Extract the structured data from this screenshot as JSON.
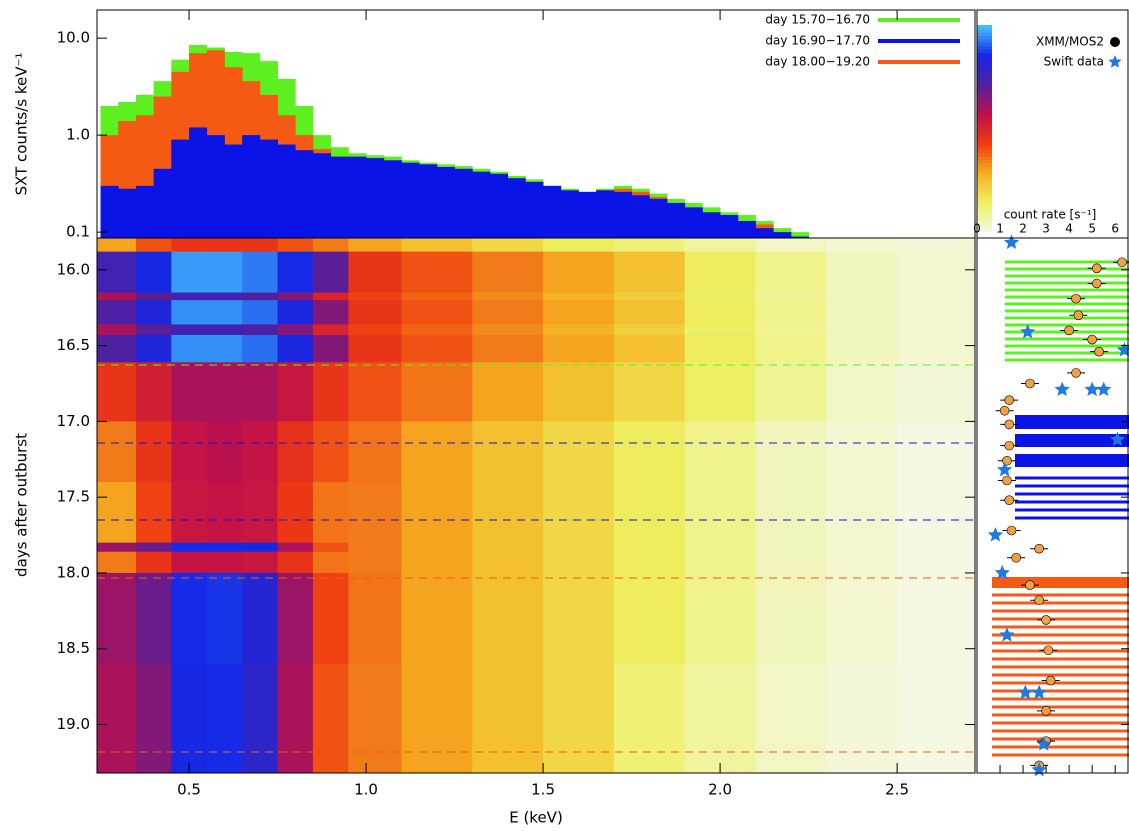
{
  "chart_data": [
    {
      "type": "histogram",
      "ylabel": "SXT counts/s keV⁻¹",
      "log_y": true,
      "xlim": [
        0.24,
        2.72
      ],
      "ylim": [
        0.087,
        19.5
      ],
      "yticks": [
        {
          "value": 10,
          "label": "10.0"
        },
        {
          "value": 1,
          "label": "1.0"
        },
        0.1
      ],
      "bins": [
        0.25,
        0.3,
        0.35,
        0.4,
        0.45,
        0.5,
        0.55,
        0.6,
        0.65,
        0.7,
        0.75,
        0.8,
        0.85,
        0.9,
        0.95,
        1.0,
        1.05,
        1.1,
        1.15,
        1.2,
        1.25,
        1.3,
        1.35,
        1.4,
        1.45,
        1.5,
        1.55,
        1.6,
        1.65,
        1.7,
        1.75,
        1.8,
        1.85,
        1.9,
        1.95,
        2.0,
        2.05,
        2.1,
        2.15,
        2.2,
        2.25
      ],
      "series": [
        {
          "name": "day 15.70−16.70",
          "color": "#5df020",
          "values": [
            2.0,
            2.2,
            2.6,
            3.6,
            6.0,
            8.5,
            8.0,
            7.2,
            7.0,
            5.8,
            3.8,
            2.0,
            1.0,
            0.75,
            0.65,
            0.62,
            0.6,
            0.55,
            0.52,
            0.5,
            0.48,
            0.45,
            0.42,
            0.38,
            0.35,
            0.3,
            0.28,
            0.26,
            0.28,
            0.3,
            0.28,
            0.25,
            0.22,
            0.2,
            0.18,
            0.16,
            0.15,
            0.13,
            0.11,
            0.1
          ]
        },
        {
          "name": "day 16.90−17.70",
          "color": "#0a14e6",
          "values": [
            0.3,
            0.28,
            0.3,
            0.45,
            0.9,
            1.2,
            1.0,
            0.8,
            1.0,
            0.9,
            0.8,
            0.7,
            0.65,
            0.6,
            0.6,
            0.58,
            0.55,
            0.52,
            0.5,
            0.47,
            0.45,
            0.42,
            0.4,
            0.36,
            0.33,
            0.3,
            0.27,
            0.26,
            0.27,
            0.26,
            0.24,
            0.22,
            0.2,
            0.18,
            0.16,
            0.15,
            0.13,
            0.11,
            0.1,
            0.09
          ]
        },
        {
          "name": "day 18.00−19.20",
          "color": "#f55a14",
          "values": [
            1.0,
            1.4,
            1.6,
            2.5,
            4.5,
            7.0,
            7.5,
            5.0,
            3.6,
            2.6,
            1.6,
            1.0,
            0.72,
            0.6,
            0.58,
            0.57,
            0.55,
            0.5,
            0.48,
            0.45,
            0.43,
            0.4,
            0.38,
            0.35,
            0.32,
            0.28,
            0.26,
            0.25,
            0.27,
            0.28,
            0.26,
            0.23,
            0.2,
            0.18,
            0.16,
            0.15,
            0.13,
            0.12,
            0.1,
            0.09
          ]
        }
      ]
    },
    {
      "type": "heatmap",
      "xlabel": "E (keV)",
      "ylabel": "days after outburst",
      "xlim": [
        0.24,
        2.72
      ],
      "ylim": [
        19.32,
        15.79
      ],
      "xticks": [
        0.5,
        {
          "value": 1,
          "label": "1.0"
        },
        1.5,
        {
          "value": 2,
          "label": "2.0"
        },
        2.5
      ],
      "yticks": [
        {
          "value": 16,
          "label": "16.0"
        },
        16.5,
        {
          "value": 17,
          "label": "17.0"
        },
        17.5,
        {
          "value": 18,
          "label": "18.0"
        },
        18.5,
        {
          "value": 19,
          "label": "19.0"
        }
      ],
      "x_edges": [
        0.24,
        0.35,
        0.45,
        0.55,
        0.65,
        0.75,
        0.85,
        0.95,
        1.1,
        1.3,
        1.5,
        1.7,
        1.9,
        2.1,
        2.3,
        2.5,
        2.72
      ],
      "y_edges": [
        15.79,
        15.88,
        16.15,
        16.2,
        16.36,
        16.43,
        16.61,
        17.0,
        17.4,
        17.8,
        17.86,
        18.0,
        18.6,
        19.32
      ],
      "values": [
        [
          3,
          4,
          4.5,
          4.5,
          4.5,
          4,
          3.5,
          3,
          2.5,
          2,
          1.5,
          1.2,
          0.8,
          0.4,
          0.3,
          0.2
        ],
        [
          7.5,
          8.5,
          9.6,
          9.6,
          9.3,
          8.6,
          7,
          4.5,
          4,
          3.5,
          3,
          2.5,
          1.5,
          1,
          0.5,
          0.3
        ],
        [
          6,
          7,
          7.5,
          7.5,
          7.2,
          6.5,
          5,
          4.2,
          3.8,
          3.3,
          2.8,
          2.2,
          1.4,
          0.9,
          0.5,
          0.3
        ],
        [
          7.2,
          8.3,
          9.5,
          9.5,
          9.2,
          8.4,
          6.5,
          4.5,
          4,
          3.5,
          3,
          2.5,
          1.5,
          1,
          0.5,
          0.3
        ],
        [
          6,
          7,
          7.5,
          7.5,
          7.2,
          6.5,
          5,
          4.2,
          3.8,
          3.3,
          2.8,
          2.2,
          1.4,
          0.9,
          0.5,
          0.3
        ],
        [
          7.2,
          8.3,
          9.5,
          9.5,
          9.2,
          8.4,
          6.5,
          4.5,
          4,
          3.5,
          3,
          2.5,
          1.5,
          1,
          0.5,
          0.3
        ],
        [
          4.5,
          5.2,
          6,
          6,
          6,
          5.5,
          4.5,
          4,
          3.6,
          3,
          2.5,
          2,
          1.4,
          0.9,
          0.4,
          0.2
        ],
        [
          3.5,
          4.5,
          5.6,
          5.8,
          5.6,
          4.6,
          4,
          3.6,
          3,
          2.5,
          2,
          1.5,
          1,
          0.5,
          0.3,
          0.1
        ],
        [
          3,
          4.2,
          5.5,
          5.6,
          5.5,
          4.4,
          3.6,
          3.5,
          3,
          2.5,
          2,
          1.5,
          1,
          0.5,
          0.3,
          0.1
        ],
        [
          6.2,
          6.8,
          8.6,
          8.6,
          8.5,
          6,
          4,
          3.5,
          3,
          2.5,
          2,
          1.5,
          1,
          0.5,
          0.3,
          0.1
        ],
        [
          3.5,
          4.5,
          5.6,
          5.6,
          5.5,
          4.5,
          3.6,
          3.5,
          3,
          2.5,
          2,
          1.5,
          1,
          0.5,
          0.3,
          0.1
        ],
        [
          6.2,
          6.8,
          8.6,
          8.7,
          8.2,
          6.2,
          4.2,
          3.6,
          3,
          2.5,
          2,
          1.5,
          1,
          0.5,
          0.3,
          0.1
        ],
        [
          6,
          6.5,
          8.5,
          8.6,
          8,
          6,
          4,
          3.5,
          3,
          2.5,
          2,
          1.2,
          0.8,
          0.4,
          0.2,
          0.1
        ]
      ],
      "colormap": [
        "#f4f8ec",
        "#eef060",
        "#f5b020",
        "#ef3a10",
        "#c01048",
        "#5020a0",
        "#1428e6",
        "#46c8ff"
      ],
      "clim": [
        0,
        10
      ]
    },
    {
      "type": "scatter",
      "xlabel": "count rate [s⁻¹]",
      "xlim": [
        0,
        6.6
      ],
      "ylim": [
        19.32,
        15.79
      ],
      "xticks": [
        0,
        1,
        2,
        3,
        4,
        5,
        6
      ],
      "series": [
        {
          "name": "XMM/MOS2",
          "color": "#f0a040",
          "marker": "circle",
          "x": [
            6.3,
            5.2,
            5.2,
            4.3,
            4.4,
            4.0,
            5.0,
            5.3,
            4.3,
            2.3,
            1.4,
            1.2,
            1.4,
            1.4,
            1.3,
            1.3,
            1.4,
            1.5,
            2.7,
            1.7,
            2.3,
            2.7,
            3.0,
            3.1,
            3.2,
            3.0,
            3.0,
            2.7
          ],
          "y": [
            15.95,
            15.99,
            16.09,
            16.19,
            16.3,
            16.4,
            16.46,
            16.54,
            16.68,
            16.75,
            16.86,
            16.93,
            17.02,
            17.16,
            17.26,
            17.39,
            17.52,
            17.72,
            17.84,
            17.9,
            18.08,
            18.18,
            18.31,
            18.51,
            18.71,
            18.91,
            19.11,
            19.27
          ]
        },
        {
          "name": "Swift data",
          "color": "#1e78e6",
          "marker": "star",
          "x": [
            1.5,
            2.2,
            6.4,
            3.7,
            5.0,
            5.5,
            6.1,
            1.2,
            0.8,
            1.1,
            1.3,
            2.1,
            2.7,
            2.9,
            2.7
          ],
          "y": [
            15.82,
            16.41,
            16.53,
            16.79,
            16.79,
            16.79,
            17.12,
            17.32,
            17.75,
            18.0,
            18.41,
            18.79,
            18.79,
            19.13,
            19.3
          ]
        }
      ]
    }
  ]
}
